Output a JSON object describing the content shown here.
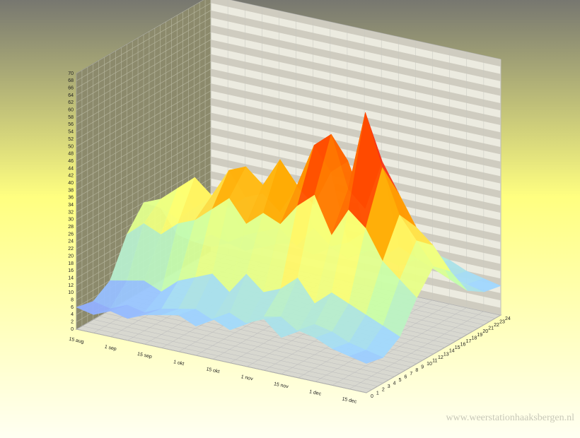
{
  "chart_data": {
    "type": "surface3d",
    "watermark": "www.weerstationhaaksbergen.nl",
    "categories": [
      "15 aug",
      null,
      "1 sep",
      null,
      "15 sep",
      null,
      "1 okt",
      null,
      "15 okt",
      null,
      "1 nov",
      null,
      "15 nov",
      null,
      "1 dec",
      null,
      "15 dec",
      null
    ],
    "z": [
      0,
      3,
      6,
      9,
      12,
      15,
      18,
      21,
      24
    ],
    "zlim": [
      0,
      24
    ],
    "zticks": [
      0,
      1,
      2,
      3,
      4,
      5,
      6,
      7,
      8,
      9,
      10,
      11,
      12,
      13,
      14,
      15,
      16,
      17,
      18,
      19,
      20,
      21,
      22,
      23,
      24
    ],
    "ylim": [
      0,
      70
    ],
    "yticks": [
      0,
      2,
      4,
      6,
      8,
      10,
      12,
      14,
      16,
      18,
      20,
      22,
      24,
      26,
      28,
      30,
      32,
      34,
      36,
      38,
      40,
      42,
      44,
      46,
      48,
      50,
      52,
      54,
      56,
      58,
      60,
      62,
      64,
      66,
      68,
      70
    ],
    "grid": true,
    "colorscale": [
      "#8080ff",
      "#a0d8ff",
      "#c8ffa8",
      "#ffff70",
      "#ffa800",
      "#ff4a00",
      "#e0005a",
      "#c070ff"
    ],
    "values": [
      [
        6,
        5,
        8,
        18,
        24,
        20,
        10,
        6,
        5
      ],
      [
        5,
        4,
        9,
        22,
        26,
        18,
        9,
        5,
        4
      ],
      [
        7,
        6,
        10,
        20,
        30,
        22,
        12,
        7,
        6
      ],
      [
        6,
        5,
        8,
        24,
        34,
        26,
        11,
        6,
        5
      ],
      [
        8,
        7,
        12,
        26,
        30,
        24,
        14,
        8,
        7
      ],
      [
        9,
        8,
        14,
        30,
        38,
        28,
        16,
        10,
        9
      ],
      [
        10,
        9,
        16,
        34,
        40,
        30,
        18,
        11,
        10
      ],
      [
        8,
        7,
        12,
        28,
        36,
        26,
        14,
        9,
        8
      ],
      [
        11,
        10,
        18,
        32,
        44,
        34,
        20,
        12,
        11
      ],
      [
        9,
        8,
        14,
        30,
        38,
        30,
        16,
        10,
        9
      ],
      [
        12,
        11,
        16,
        36,
        50,
        40,
        18,
        13,
        12
      ],
      [
        14,
        12,
        20,
        40,
        54,
        44,
        22,
        15,
        14
      ],
      [
        10,
        9,
        14,
        30,
        40,
        32,
        16,
        11,
        10
      ],
      [
        13,
        12,
        18,
        38,
        62,
        46,
        20,
        14,
        13
      ],
      [
        12,
        11,
        16,
        34,
        48,
        38,
        18,
        13,
        12
      ],
      [
        10,
        9,
        14,
        26,
        36,
        30,
        16,
        11,
        10
      ],
      [
        9,
        8,
        12,
        22,
        30,
        26,
        14,
        10,
        9
      ],
      [
        8,
        7,
        10,
        18,
        24,
        20,
        12,
        9,
        8
      ]
    ]
  }
}
